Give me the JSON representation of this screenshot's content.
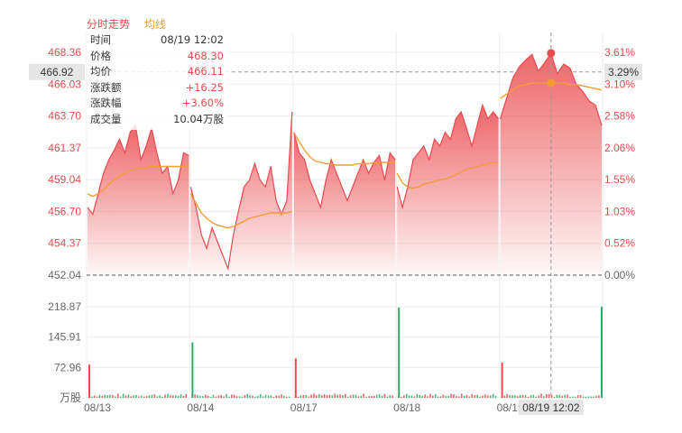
{
  "legend": {
    "price_label": "分时走势",
    "avg_label": "均线"
  },
  "colors": {
    "up": "#ea4a4e",
    "down": "#2eaa6a",
    "avg": "#f39c34",
    "axis_text": "#666666",
    "grid": "#eeeeee",
    "crosshair": "#999999"
  },
  "tooltip": {
    "time": {
      "label": "时间",
      "value": "08/19 12:02"
    },
    "price": {
      "label": "价格",
      "value": "468.30"
    },
    "avg": {
      "label": "均价",
      "value": "466.11"
    },
    "change": {
      "label": "涨跌额",
      "value": "+16.25"
    },
    "change_pct": {
      "label": "涨跌幅",
      "value": "+3.60%"
    },
    "volume": {
      "label": "成交量",
      "value": "10.04万股"
    }
  },
  "crosshair": {
    "price_label": "466.92",
    "pct_label": "3.29%",
    "time_label": "08/19 12:02"
  },
  "chart_data": [
    {
      "type": "area",
      "subtitle": "分时走势",
      "y_ticks": [
        "468.36",
        "466.03",
        "463.70",
        "461.37",
        "459.04",
        "456.70",
        "454.37",
        "452.04"
      ],
      "y_right_ticks": [
        "3.61%",
        "3.10%",
        "2.58%",
        "2.06%",
        "1.55%",
        "1.03%",
        "0.52%",
        "0.00%"
      ],
      "ylim": [
        452.04,
        468.36
      ],
      "base_price": 452.04,
      "x_ticks": [
        "08/13",
        "08/14",
        "08/17",
        "08/18",
        "08/19"
      ],
      "series": [
        {
          "name": "分时走势",
          "segments": [
            [
              457.0,
              456.5,
              458.0,
              459.5,
              460.5,
              461.2,
              462.0,
              461.0,
              462.5,
              463.0,
              460.5,
              461.5,
              462.8,
              461.0,
              459.5,
              460.0,
              458.0,
              459.0,
              461.0,
              460.8
            ],
            [
              458.5,
              457.0,
              455.0,
              454.0,
              455.5,
              454.5,
              453.5,
              452.5,
              455.0,
              456.8,
              458.5,
              459.0,
              460.2,
              459.0,
              458.5,
              460.0,
              457.5,
              456.5,
              457.5,
              464.0
            ],
            [
              462.5,
              461.0,
              460.5,
              459.0,
              458.0,
              457.0,
              459.0,
              460.5,
              459.5,
              458.5,
              457.5,
              458.5,
              459.5,
              460.5,
              459.5,
              460.3,
              460.8,
              459.0,
              461.0,
              460.5
            ],
            [
              458.5,
              457.0,
              458.5,
              460.5,
              461.0,
              461.5,
              460.5,
              462.0,
              461.5,
              462.5,
              462.0,
              463.5,
              464.0,
              462.8,
              461.5,
              463.0,
              464.5,
              463.5,
              464.0,
              463.5
            ],
            [
              463.5,
              465.0,
              466.5,
              467.3,
              467.8,
              468.2,
              467.0,
              467.6,
              468.3,
              466.8,
              467.5,
              467.2,
              466.0,
              465.5,
              464.8,
              464.5,
              463.0
            ]
          ]
        },
        {
          "name": "均线",
          "segments": [
            [
              458.0,
              457.8,
              458.0,
              458.3,
              458.7,
              459.0,
              459.3,
              459.5,
              459.7,
              459.8,
              459.9,
              459.9,
              460.0,
              460.0,
              460.0,
              460.0,
              460.0,
              460.0,
              460.0,
              460.0
            ],
            [
              458.0,
              457.3,
              456.6,
              456.2,
              455.9,
              455.7,
              455.6,
              455.5,
              455.6,
              455.8,
              456.0,
              456.2,
              456.3,
              456.4,
              456.5,
              456.6,
              456.6,
              456.6,
              456.6,
              456.7
            ],
            [
              462.5,
              461.8,
              461.2,
              460.7,
              460.4,
              460.3,
              460.2,
              460.2,
              460.1,
              460.1,
              460.1,
              460.1,
              460.2,
              460.2,
              460.2,
              460.3,
              460.3,
              460.3,
              460.3,
              460.3
            ],
            [
              459.5,
              458.8,
              458.5,
              458.4,
              458.5,
              458.7,
              458.8,
              458.9,
              459.0,
              459.1,
              459.2,
              459.4,
              459.6,
              459.8,
              459.9,
              460.0,
              460.1,
              460.2,
              460.3,
              460.3
            ],
            [
              465.0,
              465.3,
              465.6,
              465.9,
              466.0,
              466.1,
              466.1,
              466.1,
              466.11,
              466.1,
              466.1,
              466.0,
              466.0,
              465.9,
              465.8,
              465.7,
              465.6
            ]
          ]
        }
      ],
      "highlight": {
        "day": 4,
        "index": 8,
        "price": 468.3,
        "avg": 466.11
      }
    },
    {
      "type": "bar",
      "subtitle": "成交量",
      "y_ticks": [
        "218.87",
        "145.91",
        "72.96",
        "万股"
      ],
      "ylim": [
        0,
        218.87
      ],
      "x_ticks": [
        "08/13",
        "08/14",
        "08/17",
        "08/18",
        "08/19"
      ],
      "spikes": [
        {
          "day": 0,
          "value": 80
        },
        {
          "day": 1,
          "value": 133
        },
        {
          "day": 2,
          "value": 95
        },
        {
          "day": 3,
          "value": 217
        },
        {
          "day": 4,
          "value": 85
        },
        {
          "day": 4,
          "end": true,
          "value": 219
        }
      ],
      "typical_value": 6
    }
  ]
}
